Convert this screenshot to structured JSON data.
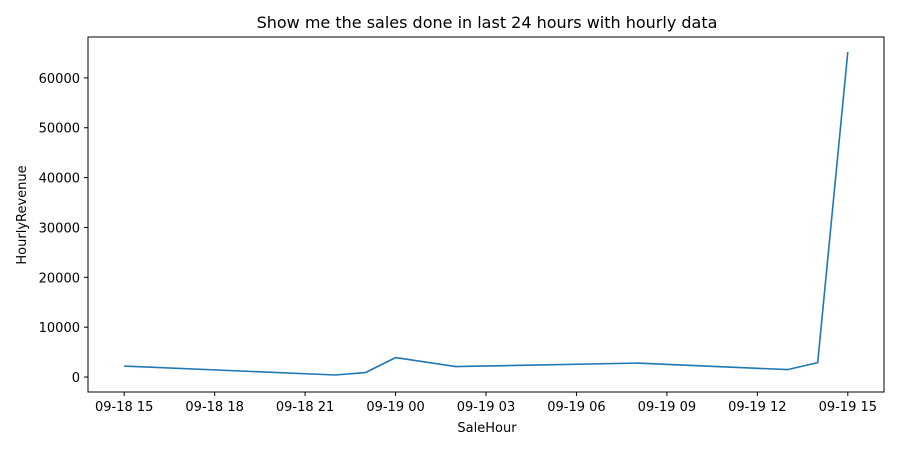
{
  "chart_data": {
    "type": "line",
    "title": "Show me the sales done in last 24 hours with hourly data",
    "xlabel": "SaleHour",
    "ylabel": "HourlyRevenue",
    "x_ticks": [
      "09-18 15",
      "09-18 18",
      "09-18 21",
      "09-19 00",
      "09-19 03",
      "09-19 06",
      "09-19 09",
      "09-19 12",
      "09-19 15"
    ],
    "y_ticks": [
      "0",
      "10000",
      "20000",
      "30000",
      "40000",
      "50000",
      "60000"
    ],
    "xlim": [
      "09-18 13:48",
      "09-19 16:12"
    ],
    "ylim": [
      -3000,
      68200
    ],
    "grid": false,
    "series": [
      {
        "color": "#1f77b4",
        "x": [
          "09-18 15:00",
          "09-18 22:00",
          "09-18 23:00",
          "09-19 00:00",
          "09-19 02:00",
          "09-19 08:00",
          "09-19 13:00",
          "09-19 14:00",
          "09-19 15:00"
        ],
        "y": [
          2200,
          400,
          900,
          3900,
          2100,
          2800,
          1500,
          2900,
          65200
        ]
      }
    ]
  }
}
